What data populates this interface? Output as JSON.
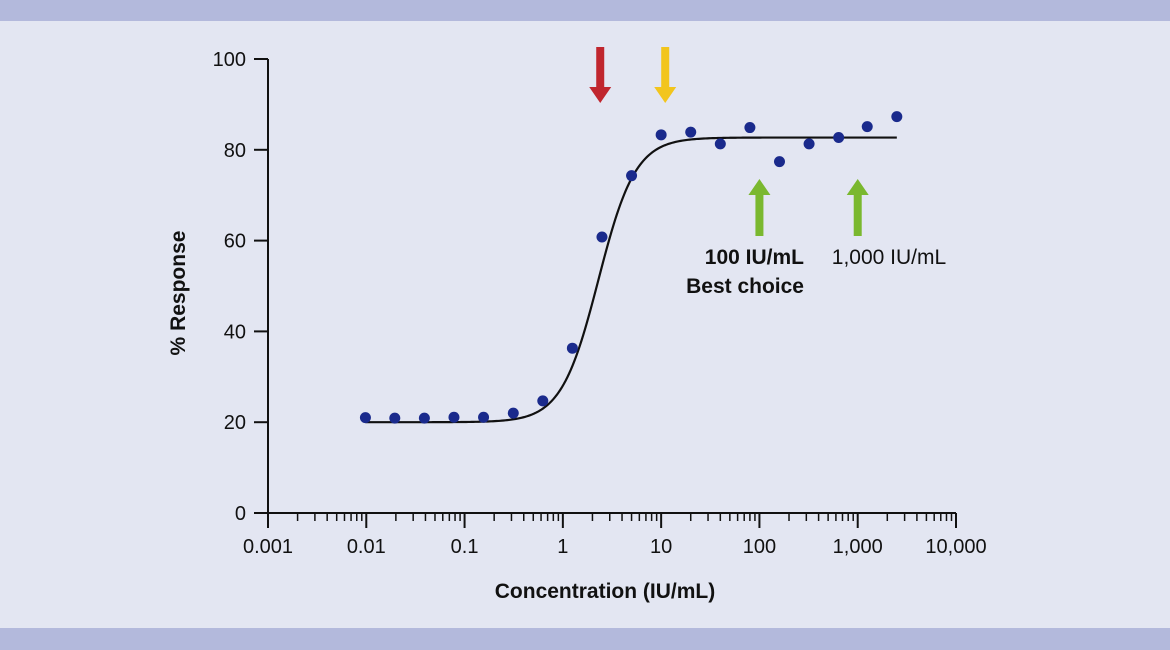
{
  "colors": {
    "background": "#e3e6f2",
    "band": "#b3b9dc",
    "point": "#1a2a8c",
    "curve": "#111111",
    "axis": "#111111",
    "arrow_red": "#c0262e",
    "arrow_yellow": "#f2c51d",
    "arrow_green": "#7ab82f"
  },
  "chart_data": {
    "type": "scatter",
    "title": "",
    "xlabel": "Concentration (IU/mL)",
    "ylabel": "% Response",
    "x_scale": "log",
    "xlim": [
      0.001,
      10000
    ],
    "ylim": [
      0,
      100
    ],
    "grid": false,
    "x_ticks": [
      {
        "value": 0.001,
        "label": "0.001"
      },
      {
        "value": 0.01,
        "label": "0.01"
      },
      {
        "value": 0.1,
        "label": "0.1"
      },
      {
        "value": 1,
        "label": "1"
      },
      {
        "value": 10,
        "label": "10"
      },
      {
        "value": 100,
        "label": "100"
      },
      {
        "value": 1000,
        "label": "1,000"
      },
      {
        "value": 10000,
        "label": "10,000"
      }
    ],
    "y_ticks": [
      {
        "value": 0,
        "label": "0"
      },
      {
        "value": 20,
        "label": "20"
      },
      {
        "value": 40,
        "label": "40"
      },
      {
        "value": 60,
        "label": "60"
      },
      {
        "value": 80,
        "label": "80"
      },
      {
        "value": 100,
        "label": "100"
      }
    ],
    "points": [
      {
        "x": 0.0098,
        "y": 21.0
      },
      {
        "x": 0.0195,
        "y": 20.9
      },
      {
        "x": 0.039,
        "y": 20.9
      },
      {
        "x": 0.078,
        "y": 21.1
      },
      {
        "x": 0.156,
        "y": 21.1
      },
      {
        "x": 0.313,
        "y": 22.0
      },
      {
        "x": 0.625,
        "y": 24.7
      },
      {
        "x": 1.25,
        "y": 36.3
      },
      {
        "x": 2.5,
        "y": 60.8
      },
      {
        "x": 5.0,
        "y": 74.3
      },
      {
        "x": 10,
        "y": 83.3
      },
      {
        "x": 20,
        "y": 83.9
      },
      {
        "x": 40,
        "y": 81.3
      },
      {
        "x": 80,
        "y": 84.9
      },
      {
        "x": 160,
        "y": 77.4
      },
      {
        "x": 320,
        "y": 81.3
      },
      {
        "x": 640,
        "y": 82.7
      },
      {
        "x": 1250,
        "y": 85.1
      },
      {
        "x": 2500,
        "y": 87.3
      }
    ],
    "fit_curve": {
      "bottom": 20,
      "top": 82.7,
      "ec50": 2.3,
      "hill": 2.3,
      "x_range": [
        0.0098,
        2500
      ]
    },
    "annotations": {
      "arrows_down": [
        {
          "x": 2.4,
          "color": "arrow_red"
        },
        {
          "x": 11,
          "color": "arrow_yellow"
        }
      ],
      "arrows_up": [
        {
          "x": 100,
          "color": "arrow_green"
        },
        {
          "x": 1000,
          "color": "arrow_green"
        }
      ],
      "label_100": {
        "line1": "100 IU/mL",
        "line2": "Best choice"
      },
      "label_1000": "1,000 IU/mL"
    }
  }
}
